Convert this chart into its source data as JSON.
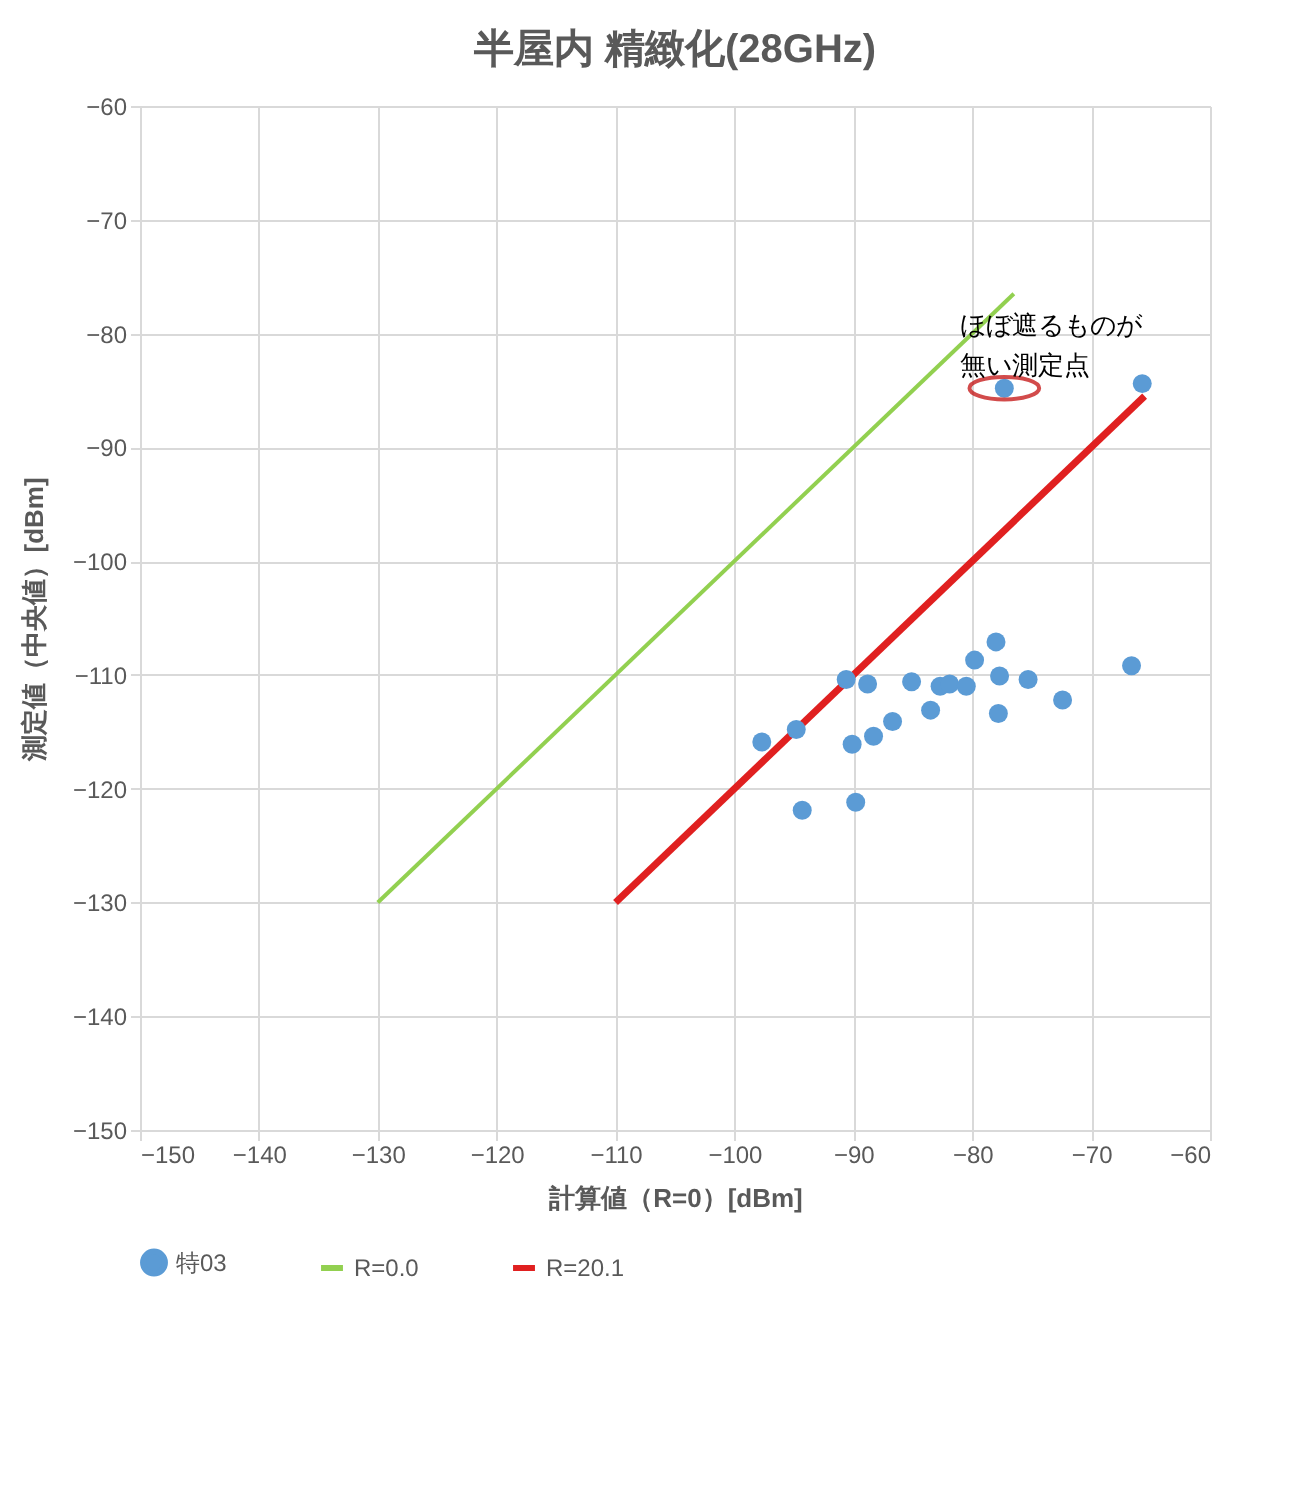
{
  "chart_data": {
    "type": "scatter",
    "title": "半屋内 精緻化(28GHz)",
    "xlabel": "計算値（R=0）[dBm]",
    "ylabel": "測定値（中央値）[dBm]",
    "xlim": [
      -150,
      -60
    ],
    "ylim": [
      -150,
      -60
    ],
    "xticks": [
      -150,
      -140,
      -130,
      -120,
      -110,
      -100,
      -90,
      -80,
      -70,
      -60
    ],
    "yticks": [
      -150,
      -140,
      -130,
      -120,
      -110,
      -100,
      -90,
      -80,
      -70,
      -60
    ],
    "grid": true,
    "legend": "bottom",
    "annotations": [
      "ほぼ遮るものが",
      {
        "text": "無い測定点",
        "x": -77.3,
        "y": -84.8
      }
    ],
    "series": [
      {
        "name": "特03",
        "type": "scatter",
        "color": "#5b9bd5",
        "x": [
          -97.7,
          -94.8,
          -94.3,
          -90.6,
          -88.8,
          -90.1,
          -89.8,
          -88.3,
          -86.7,
          -85.1,
          -83.5,
          -82.7,
          -81.9,
          -80.5,
          -79.8,
          -78.0,
          -77.7,
          -77.8,
          -75.3,
          -72.4,
          -66.6,
          -77.3,
          -65.7
        ],
        "values": [
          -115.9,
          -114.8,
          -121.9,
          -110.4,
          -110.8,
          -116.1,
          -121.2,
          -115.4,
          -114.1,
          -110.6,
          -113.1,
          -111.0,
          -110.8,
          -111.0,
          -108.7,
          -107.1,
          -110.1,
          -113.4,
          -110.4,
          -112.2,
          -109.2,
          -84.8,
          -84.4
        ]
      },
      {
        "name": "R=0.0",
        "type": "line",
        "color": "#92d050",
        "x": [
          -130,
          -76.5
        ],
        "values": [
          -130,
          -76.5
        ]
      },
      {
        "name": "R=20.1",
        "type": "line",
        "color": "#e02020",
        "x": [
          -110,
          -65.5
        ],
        "values": [
          -130,
          -85.5
        ]
      }
    ]
  }
}
